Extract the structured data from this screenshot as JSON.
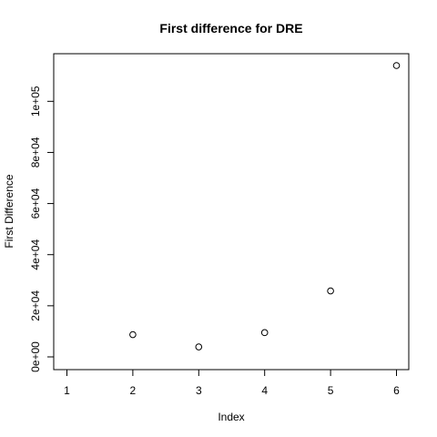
{
  "chart_data": {
    "type": "scatter",
    "title": "First difference for  DRE",
    "xlabel": "Index",
    "ylabel": "First Difference",
    "x": [
      2,
      3,
      4,
      5,
      6
    ],
    "y": [
      8700,
      3900,
      9500,
      25800,
      114000
    ],
    "xlim": [
      1,
      6
    ],
    "ylim": [
      0,
      114000
    ],
    "xticks": [
      1,
      2,
      3,
      4,
      5,
      6
    ],
    "xtick_labels": [
      "1",
      "2",
      "3",
      "4",
      "5",
      "6"
    ],
    "yticks": [
      0,
      20000,
      40000,
      60000,
      80000,
      100000
    ],
    "ytick_labels": [
      "0e+00",
      "2e+04",
      "4e+04",
      "6e+04",
      "8e+04",
      "1e+05"
    ],
    "grid": false,
    "legend": "none",
    "marker": "open-circle",
    "colors": {
      "points": "#000000",
      "axes": "#000000",
      "background": "#ffffff"
    }
  }
}
